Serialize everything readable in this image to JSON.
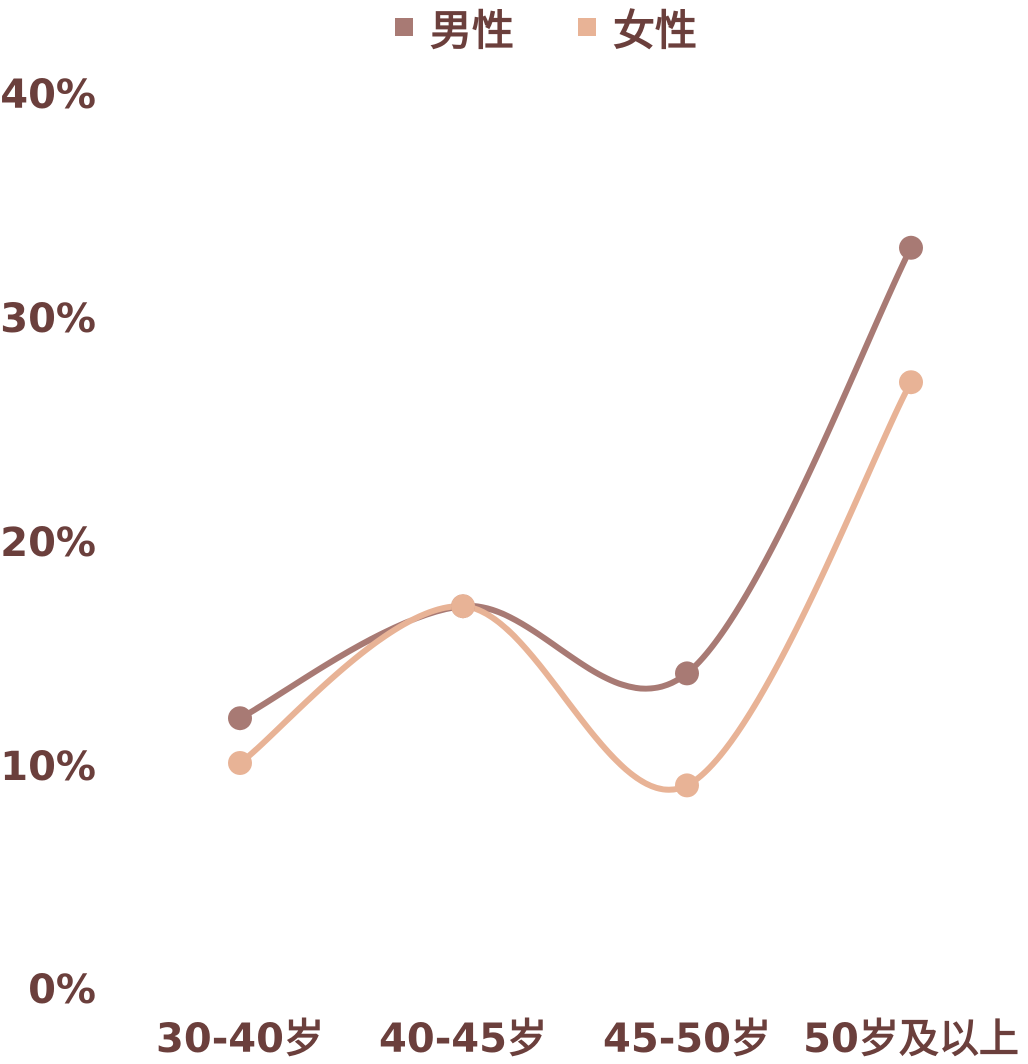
{
  "chart_data": {
    "type": "line",
    "title": "",
    "xlabel": "",
    "ylabel": "",
    "categories": [
      "30-40岁",
      "40-45岁",
      "45-50岁",
      "50岁及以上"
    ],
    "y_ticks": [
      "0%",
      "10%",
      "20%",
      "30%",
      "40%"
    ],
    "ylim": [
      0,
      40
    ],
    "legend_position": "top-center",
    "grid": false,
    "smooth": true,
    "series": [
      {
        "name": "男性",
        "color": "#a87a74",
        "values": [
          12,
          17,
          14,
          33
        ]
      },
      {
        "name": "女性",
        "color": "#e8b396",
        "values": [
          10,
          17,
          9,
          27
        ]
      }
    ]
  }
}
